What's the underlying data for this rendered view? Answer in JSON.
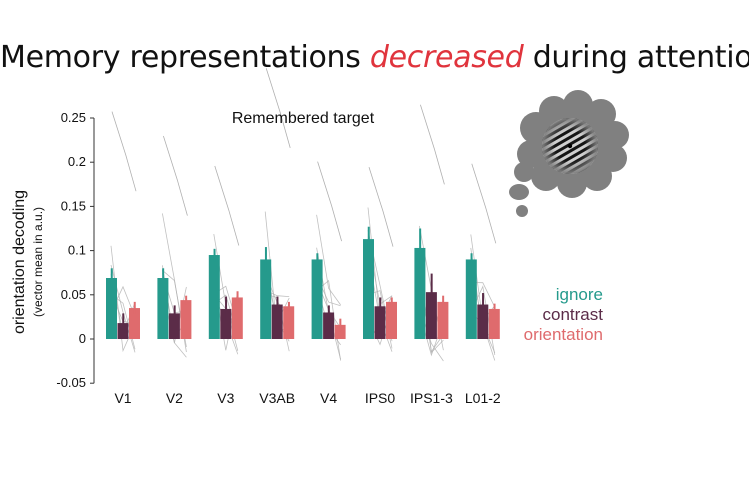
{
  "slide": {
    "title_pre": "Memory representations ",
    "title_em": "decreased",
    "title_post": " during attention",
    "title_em_color": "#e0343d"
  },
  "colors": {
    "ignore": "#259a8c",
    "contrast": "#5b2c48",
    "orientation": "#df6b6d",
    "subject_lines": "#b0b0b0"
  },
  "icon": "thought-bubble-grating-icon",
  "chart_data": {
    "type": "bar",
    "title": "Remembered target",
    "ylabel": "orientation decoding",
    "ylabel_sub": "(vector mean in a.u.)",
    "ylim": [
      -0.05,
      0.25
    ],
    "yticks": [
      -0.05,
      0,
      0.05,
      0.1,
      0.15,
      0.2,
      0.25
    ],
    "ytick_labels": [
      "-0.05",
      "0",
      "0.05",
      "0.1",
      "0.15",
      "0.2",
      "0.25"
    ],
    "grid": false,
    "legend_position": "right",
    "categories": [
      "V1",
      "V2",
      "V3",
      "V3AB",
      "V4",
      "IPS0",
      "IPS1-3",
      "L01-2"
    ],
    "series": [
      {
        "name": "ignore",
        "color": "#259a8c",
        "values": [
          0.069,
          0.069,
          0.095,
          0.09,
          0.09,
          0.113,
          0.103,
          0.09
        ],
        "errors": [
          0.011,
          0.011,
          0.007,
          0.014,
          0.007,
          0.014,
          0.022,
          0.007
        ]
      },
      {
        "name": "contrast",
        "color": "#5b2c48",
        "values": [
          0.018,
          0.029,
          0.034,
          0.039,
          0.03,
          0.037,
          0.053,
          0.039
        ],
        "errors": [
          0.011,
          0.009,
          0.014,
          0.009,
          0.008,
          0.01,
          0.021,
          0.013
        ]
      },
      {
        "name": "orientation",
        "color": "#df6b6d",
        "values": [
          0.035,
          0.044,
          0.047,
          0.037,
          0.016,
          0.042,
          0.042,
          0.034
        ],
        "errors": [
          0.007,
          0.005,
          0.007,
          0.005,
          0.007,
          0.005,
          0.007,
          0.006
        ]
      }
    ]
  }
}
